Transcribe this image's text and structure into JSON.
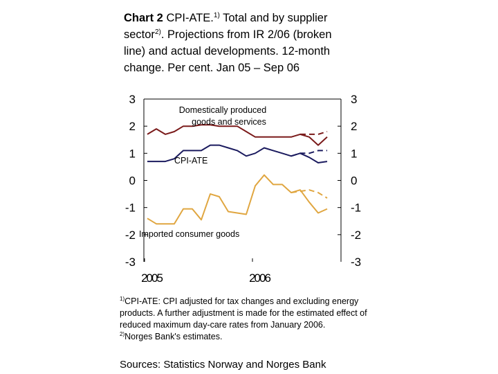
{
  "title": {
    "bold": "Chart 2",
    "part1": " CPI-ATE.",
    "sup1": "1)",
    "part2": " Total and by supplier sector",
    "sup2": "2)",
    "part3": ". Projections from IR 2/06 (broken line) and actual developments. 12-month change. Per cent. Jan 05 – Sep 06"
  },
  "footnotes": [
    {
      "marker": "1)",
      "text": "CPI-ATE: CPI adjusted for tax changes and excluding energy products. A further adjustment is made for the estimated effect of reduced maximum day-care rates from January 2006."
    },
    {
      "marker": "2)",
      "text": "Norges Bank's estimates."
    }
  ],
  "sources": "Sources: Statistics Norway and Norges Bank",
  "chart_data": {
    "type": "line",
    "title": "CPI-ATE. Total and by supplier sector. Projections from IR 2/06 (broken line) and actual developments. 12-month change. Per cent. Jan 05 – Sep 06",
    "xlabel": "",
    "ylabel": "Per cent",
    "ylim": [
      -3,
      3
    ],
    "yticks": [
      "3",
      "2",
      "1",
      "0",
      "-1",
      "-2",
      "-3"
    ],
    "yticks_right": [
      "3",
      "2",
      "1",
      "0",
      "-1",
      "-2",
      "-3"
    ],
    "x": [
      "Jan 05",
      "Feb 05",
      "Mar 05",
      "Apr 05",
      "May 05",
      "Jun 05",
      "Jul 05",
      "Aug 05",
      "Sep 05",
      "Oct 05",
      "Nov 05",
      "Dec 05",
      "Jan 06",
      "Feb 06",
      "Mar 06",
      "Apr 06",
      "May 06",
      "Jun 06",
      "Jul 06",
      "Aug 06",
      "Sep 06"
    ],
    "xtick_labels": [
      {
        "label": "2005",
        "index": 0
      },
      {
        "label": "2006",
        "index": 12
      }
    ],
    "grid": false,
    "legend": "inline-annotations",
    "series": [
      {
        "name": "Domestically produced goods and services",
        "label": "Domestically produced goods and services",
        "color": "#7a1a1a",
        "style": "solid",
        "values": [
          1.7,
          1.9,
          1.7,
          1.8,
          2.0,
          2.0,
          2.05,
          2.05,
          2.0,
          2.0,
          2.0,
          1.8,
          1.6,
          1.6,
          1.6,
          1.6,
          1.6,
          1.7,
          1.6,
          1.3,
          1.6
        ]
      },
      {
        "name": "Domestically produced goods and services (projection IR 2/06)",
        "color": "#7a1a1a",
        "style": "dashed",
        "start_index": 17,
        "values": [
          1.7,
          1.7,
          1.7,
          1.8
        ]
      },
      {
        "name": "CPI-ATE",
        "label": "CPI-ATE",
        "color": "#1a1a5e",
        "style": "solid",
        "values": [
          0.7,
          0.7,
          0.7,
          0.8,
          1.1,
          1.1,
          1.1,
          1.3,
          1.3,
          1.2,
          1.1,
          0.9,
          1.0,
          1.2,
          1.1,
          1.0,
          0.9,
          1.0,
          0.85,
          0.65,
          0.7
        ]
      },
      {
        "name": "CPI-ATE (projection IR 2/06)",
        "color": "#1a1a5e",
        "style": "dashed",
        "start_index": 16,
        "values": [
          0.9,
          1.0,
          1.0,
          1.1,
          1.1
        ]
      },
      {
        "name": "Imported consumer goods",
        "label": "Imported consumer goods",
        "color": "#e0a640",
        "style": "solid",
        "values": [
          -1.4,
          -1.6,
          -1.6,
          -1.6,
          -1.05,
          -1.05,
          -1.45,
          -0.5,
          -0.6,
          -1.15,
          -1.2,
          -1.25,
          -0.2,
          0.2,
          -0.15,
          -0.15,
          -0.45,
          -0.35,
          -0.8,
          -1.2,
          -1.05
        ]
      },
      {
        "name": "Imported consumer goods (projection IR 2/06)",
        "color": "#e0a640",
        "style": "dashed",
        "start_index": 16,
        "values": [
          -0.45,
          -0.4,
          -0.35,
          -0.45,
          -0.65
        ]
      }
    ]
  }
}
